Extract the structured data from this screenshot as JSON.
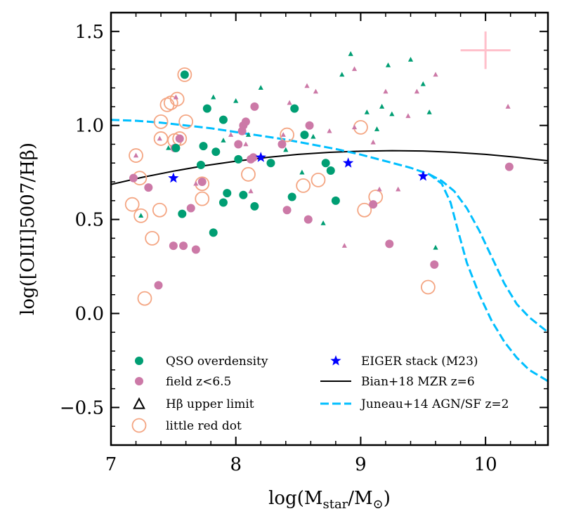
{
  "chart_data": {
    "type": "scatter",
    "xlabel": "log(M_star/M_⊙)",
    "ylabel": "log([OIII]5007/Hβ)",
    "xlim": [
      7.0,
      10.5
    ],
    "ylim": [
      -0.7,
      1.6
    ],
    "x_ticks": [
      "7",
      "8",
      "9",
      "10"
    ],
    "y_ticks": [
      "−0.5",
      "0.0",
      "0.5",
      "1.0",
      "1.5"
    ],
    "grid": false,
    "legend_position": "lower",
    "colors": {
      "qso": "#009E73",
      "field": "#CC79A7",
      "lrd": "#F4A582",
      "eiger": "#0000FF",
      "bian": "#000000",
      "juneau": "#00BFFF",
      "error": "#FFC0CB"
    },
    "legend": [
      {
        "label": "QSO overdensity",
        "marker": "circle",
        "color": "#009E73"
      },
      {
        "label": "field z<6.5",
        "marker": "circle",
        "color": "#CC79A7"
      },
      {
        "label": "Hβ upper limit",
        "marker": "triangle-open",
        "color": "#000000"
      },
      {
        "label": "little red dot",
        "marker": "ring",
        "color": "#F4A582"
      },
      {
        "label": "EIGER stack (M23)",
        "marker": "star",
        "color": "#0000FF"
      },
      {
        "label": "Bian+18 MZR z=6",
        "marker": "line",
        "color": "#000000"
      },
      {
        "label": "Juneau+14 AGN/SF z=2",
        "marker": "dashed",
        "color": "#00BFFF"
      }
    ],
    "series": [
      {
        "name": "QSO overdensity",
        "points": [
          [
            7.52,
            0.88
          ],
          [
            7.57,
            0.53
          ],
          [
            7.59,
            1.27
          ],
          [
            7.72,
            0.79
          ],
          [
            7.74,
            0.89
          ],
          [
            7.77,
            1.09
          ],
          [
            7.82,
            0.43
          ],
          [
            7.84,
            0.86
          ],
          [
            7.9,
            0.59
          ],
          [
            7.9,
            1.03
          ],
          [
            7.93,
            0.64
          ],
          [
            8.02,
            0.82
          ],
          [
            8.06,
            0.63
          ],
          [
            8.15,
            0.57
          ],
          [
            8.28,
            0.8
          ],
          [
            8.45,
            0.62
          ],
          [
            8.47,
            1.09
          ],
          [
            8.55,
            0.95
          ],
          [
            8.72,
            0.8
          ],
          [
            8.76,
            0.76
          ],
          [
            8.8,
            0.6
          ]
        ]
      },
      {
        "name": "field z<6.5",
        "points": [
          [
            7.18,
            0.72
          ],
          [
            7.3,
            0.67
          ],
          [
            7.38,
            0.15
          ],
          [
            7.5,
            0.36
          ],
          [
            7.51,
            0.88
          ],
          [
            7.55,
            0.93
          ],
          [
            7.58,
            0.36
          ],
          [
            7.64,
            0.56
          ],
          [
            7.68,
            0.34
          ],
          [
            7.73,
            0.7
          ],
          [
            8.02,
            0.9
          ],
          [
            8.05,
            0.97
          ],
          [
            8.06,
            1.0
          ],
          [
            8.08,
            1.02
          ],
          [
            8.12,
            0.82
          ],
          [
            8.14,
            0.83
          ],
          [
            8.15,
            1.1
          ],
          [
            8.37,
            0.9
          ],
          [
            8.41,
            0.55
          ],
          [
            8.58,
            0.5
          ],
          [
            8.59,
            1.0
          ],
          [
            9.1,
            0.58
          ],
          [
            9.23,
            0.37
          ],
          [
            9.59,
            0.26
          ],
          [
            10.19,
            0.78
          ]
        ]
      },
      {
        "name": "Hβ upper limit",
        "points": [
          [
            7.2,
            0.84
          ],
          [
            7.24,
            0.52
          ],
          [
            7.39,
            0.93
          ],
          [
            7.46,
            0.88
          ],
          [
            7.68,
            0.69
          ],
          [
            7.9,
            0.92
          ],
          [
            7.96,
            0.95
          ],
          [
            8.0,
            1.13
          ],
          [
            8.08,
            0.9
          ],
          [
            8.1,
            0.95
          ],
          [
            8.12,
            0.65
          ],
          [
            8.2,
            1.2
          ],
          [
            8.38,
            0.95
          ],
          [
            8.4,
            0.87
          ],
          [
            8.43,
            1.12
          ],
          [
            8.53,
            0.75
          ],
          [
            8.57,
            1.21
          ],
          [
            8.62,
            0.94
          ],
          [
            8.64,
            1.18
          ],
          [
            8.7,
            0.48
          ],
          [
            8.75,
            0.97
          ],
          [
            8.85,
            1.27
          ],
          [
            8.87,
            0.36
          ],
          [
            8.92,
            1.38
          ],
          [
            8.95,
            1.3
          ],
          [
            9.05,
            1.07
          ],
          [
            9.1,
            0.91
          ],
          [
            9.13,
            0.98
          ],
          [
            9.15,
            0.66
          ],
          [
            9.17,
            1.1
          ],
          [
            9.2,
            1.18
          ],
          [
            9.22,
            1.32
          ],
          [
            9.3,
            0.66
          ],
          [
            9.4,
            1.35
          ],
          [
            9.45,
            1.18
          ],
          [
            9.5,
            1.22
          ],
          [
            9.6,
            1.27
          ],
          [
            9.6,
            0.35
          ],
          [
            10.18,
            1.1
          ],
          [
            7.82,
            1.15
          ],
          [
            8.95,
            0.99
          ],
          [
            9.25,
            1.06
          ],
          [
            9.38,
            1.05
          ],
          [
            9.55,
            1.07
          ],
          [
            7.52,
            1.15
          ]
        ]
      },
      {
        "name": "little red dot",
        "points": [
          [
            7.17,
            0.58
          ],
          [
            7.2,
            0.84
          ],
          [
            7.23,
            0.72
          ],
          [
            7.24,
            0.52
          ],
          [
            7.27,
            0.08
          ],
          [
            7.33,
            0.4
          ],
          [
            7.39,
            0.55
          ],
          [
            7.4,
            1.02
          ],
          [
            7.4,
            0.93
          ],
          [
            7.45,
            1.11
          ],
          [
            7.48,
            1.12
          ],
          [
            7.51,
            0.92
          ],
          [
            7.53,
            1.14
          ],
          [
            7.55,
            0.93
          ],
          [
            7.59,
            1.27
          ],
          [
            7.6,
            1.02
          ],
          [
            7.73,
            0.61
          ],
          [
            7.73,
            0.69
          ],
          [
            8.1,
            0.74
          ],
          [
            8.41,
            0.95
          ],
          [
            8.54,
            0.68
          ],
          [
            8.66,
            0.71
          ],
          [
            9.0,
            0.99
          ],
          [
            9.03,
            0.55
          ],
          [
            9.12,
            0.62
          ],
          [
            9.54,
            0.14
          ]
        ]
      },
      {
        "name": "EIGER stack (M23)",
        "points": [
          [
            7.5,
            0.72
          ],
          [
            8.2,
            0.83
          ],
          [
            8.9,
            0.8
          ],
          [
            9.5,
            0.73
          ]
        ]
      }
    ],
    "error_bar": {
      "x": 10.0,
      "y": 1.4,
      "xerr": 0.2,
      "yerr": 0.1
    },
    "bian_curve": [
      [
        7.0,
        0.686
      ],
      [
        7.25,
        0.724
      ],
      [
        7.5,
        0.757
      ],
      [
        7.75,
        0.786
      ],
      [
        8.0,
        0.81
      ],
      [
        8.25,
        0.83
      ],
      [
        8.5,
        0.846
      ],
      [
        8.75,
        0.857
      ],
      [
        9.0,
        0.863
      ],
      [
        9.25,
        0.866
      ],
      [
        9.5,
        0.864
      ],
      [
        9.75,
        0.857
      ],
      [
        10.0,
        0.846
      ],
      [
        10.25,
        0.831
      ],
      [
        10.5,
        0.812
      ]
    ],
    "juneau_curve_upper": [
      [
        7.0,
        1.03
      ],
      [
        7.2,
        1.025
      ],
      [
        7.4,
        1.015
      ],
      [
        7.6,
        1.0
      ],
      [
        7.8,
        0.985
      ],
      [
        8.0,
        0.965
      ],
      [
        8.2,
        0.945
      ],
      [
        8.4,
        0.925
      ],
      [
        8.6,
        0.9
      ],
      [
        8.8,
        0.875
      ],
      [
        9.0,
        0.845
      ],
      [
        9.2,
        0.81
      ],
      [
        9.4,
        0.775
      ],
      [
        9.55,
        0.74
      ],
      [
        9.65,
        0.69
      ],
      [
        9.72,
        0.59
      ],
      [
        9.78,
        0.44
      ],
      [
        9.85,
        0.27
      ],
      [
        9.95,
        0.1
      ],
      [
        10.05,
        -0.04
      ],
      [
        10.15,
        -0.15
      ],
      [
        10.25,
        -0.235
      ],
      [
        10.35,
        -0.3
      ],
      [
        10.5,
        -0.36
      ]
    ],
    "juneau_curve_lower": [
      [
        9.55,
        0.74
      ],
      [
        9.65,
        0.705
      ],
      [
        9.75,
        0.65
      ],
      [
        9.85,
        0.56
      ],
      [
        9.95,
        0.44
      ],
      [
        10.05,
        0.3
      ],
      [
        10.15,
        0.16
      ],
      [
        10.25,
        0.05
      ],
      [
        10.35,
        -0.02
      ],
      [
        10.5,
        -0.1
      ]
    ]
  }
}
